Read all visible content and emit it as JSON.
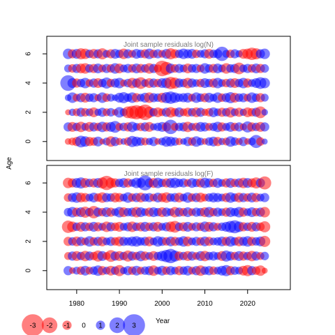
{
  "chart_data": {
    "type": "scatter",
    "xlabel": "Year",
    "ylabel": "Age",
    "years_range": [
      1978,
      2024
    ],
    "xlim": [
      1973,
      2030
    ],
    "ylim": [
      -1.3,
      7.2
    ],
    "x_ticks": [
      1980,
      1990,
      2000,
      2010,
      2020
    ],
    "y_ticks": [
      0,
      2,
      4,
      6
    ],
    "colors": {
      "positive": "#0000ff",
      "negative": "#ff0000"
    },
    "opacity": 0.5,
    "panels": [
      {
        "title": "Joint sample residuals log(N)",
        "ages": [
          0,
          1,
          2,
          3,
          4,
          5,
          6
        ],
        "residuals": [
          [
            -0.6,
            -0.8,
            -1.0,
            1.4,
            1.2,
            -1.0,
            -0.9,
            1.1,
            -0.5,
            0.8,
            -1.2,
            1.0,
            -0.7,
            0.6,
            -0.9,
            1.3,
            1.1,
            0.9,
            -0.8,
            0.7,
            1.0,
            -0.6,
            0.8,
            1.2,
            1.1,
            0.9,
            -0.7,
            0.6,
            1.0,
            -0.9,
            1.2,
            0.8,
            -0.6,
            0.9,
            1.1,
            -1.0,
            0.7,
            -0.8,
            1.2,
            0.9,
            -0.7,
            1.0,
            -0.6,
            0.8,
            1.6,
            -0.9,
            0.5
          ],
          [
            1.0,
            -1.1,
            0.9,
            -1.2,
            0.8,
            -1.1,
            1.0,
            -0.9,
            1.2,
            -1.0,
            1.1,
            1.4,
            -0.8,
            0.9,
            -1.0,
            1.2,
            0.8,
            -0.9,
            1.0,
            -1.1,
            0.7,
            0.9,
            1.1,
            -1.0,
            1.8,
            -0.8,
            0.9,
            1.0,
            -1.2,
            0.8,
            -0.9,
            1.1,
            1.0,
            -0.8,
            0.9,
            1.2,
            -1.0,
            0.8,
            1.1,
            -0.9,
            1.0,
            -0.7,
            1.3,
            -1.0,
            0.9,
            -1.1,
            1.0
          ],
          [
            -0.5,
            0.7,
            -0.8,
            1.0,
            -0.9,
            0.8,
            -1.1,
            0.7,
            1.0,
            -0.8,
            0.9,
            -0.6,
            1.2,
            0.8,
            -1.4,
            -1.6,
            -1.8,
            -1.5,
            -2.0,
            -1.3,
            0.9,
            -1.1,
            -0.8,
            1.0,
            -1.2,
            -0.9,
            1.1,
            -0.8,
            -1.0,
            0.9,
            -1.1,
            1.0,
            -0.7,
            -0.9,
            1.1,
            0.8,
            -1.0,
            0.9,
            -1.2,
            0.8,
            -1.0,
            0.7,
            -1.1,
            -0.9,
            1.0,
            -1.4,
            0.6
          ],
          [
            0.6,
            1.2,
            -0.8,
            1.0,
            -1.1,
            0.9,
            1.0,
            -0.7,
            1.2,
            -0.9,
            0.8,
            0.6,
            1.1,
            1.3,
            0.9,
            1.2,
            -1.0,
            0.8,
            1.1,
            -1.2,
            1.0,
            0.9,
            -1.1,
            1.3,
            1.5,
            1.2,
            0.9,
            1.0,
            1.1,
            -0.8,
            1.2,
            0.9,
            -1.0,
            1.1,
            0.8,
            1.2,
            -0.9,
            1.0,
            1.3,
            -1.1,
            0.9,
            1.0,
            -0.8,
            1.2,
            0.9,
            -1.0,
            0.8
          ],
          [
            2.0,
            1.1,
            -1.0,
            0.9,
            1.2,
            -0.8,
            1.0,
            -1.1,
            0.9,
            1.3,
            -0.9,
            1.0,
            1.2,
            -0.7,
            0.9,
            -1.2,
            1.0,
            -1.4,
            0.8,
            -1.1,
            1.0,
            -0.9,
            1.1,
            1.2,
            -1.5,
            -1.3,
            1.0,
            0.9,
            -1.2,
            1.0,
            0.8,
            -0.9,
            1.1,
            0.9,
            -1.0,
            1.2,
            0.8,
            -0.9,
            1.0,
            -1.1,
            0.9,
            1.2,
            -1.0,
            0.8,
            1.1,
            1.4,
            1.2
          ],
          [
            0.8,
            -0.9,
            1.0,
            -1.1,
            -1.2,
            0.9,
            -1.0,
            1.1,
            -0.8,
            1.0,
            -0.9,
            1.2,
            -1.1,
            0.8,
            1.0,
            -0.9,
            1.1,
            -1.0,
            0.9,
            -1.2,
            1.0,
            -0.8,
            -2.0,
            -1.6,
            1.1,
            -0.9,
            1.0,
            0.8,
            -1.1,
            0.9,
            1.0,
            -0.8,
            1.2,
            0.9,
            -1.0,
            1.1,
            0.8,
            -1.2,
            0.9,
            1.0,
            -1.4,
            0.8,
            1.0,
            -0.9,
            1.1,
            -1.0,
            0.9
          ],
          [
            1.2,
            -1.0,
            1.1,
            -1.3,
            -1.2,
            0.9,
            -1.1,
            1.0,
            -1.3,
            0.8,
            -1.0,
            1.1,
            0.9,
            -1.2,
            1.0,
            -0.8,
            1.1,
            0.9,
            -1.0,
            1.2,
            -0.9,
            1.0,
            -0.8,
            1.1,
            -1.3,
            -1.0,
            0.9,
            1.2,
            1.0,
            1.1,
            -0.9,
            0.8,
            1.0,
            -1.1,
            0.9,
            1.0,
            1.8,
            0.8,
            -0.9,
            1.0,
            0.7,
            -1.1,
            -1.2,
            -1.5,
            -1.3,
            1.0,
            1.2
          ]
        ]
      },
      {
        "title": "Joint sample residuals log(F)",
        "ages": [
          0,
          1,
          2,
          3,
          4,
          5,
          6
        ],
        "residuals": [
          [
            1.0,
            -0.6,
            0.8,
            -0.9,
            1.1,
            -0.8,
            0.9,
            1.2,
            -1.0,
            0.8,
            -1.1,
            0.9,
            -1.3,
            0.7,
            1.0,
            -0.9,
            1.1,
            -0.8,
            0.9,
            1.0,
            -1.2,
            0.8,
            1.1,
            -0.9,
            1.0,
            0.8,
            -1.0,
            0.9,
            1.1,
            -0.8,
            1.0,
            -1.2,
            0.9,
            1.0,
            -0.9,
            0.8,
            1.1,
            1.3,
            -1.0,
            0.9,
            0.8,
            -1.1,
            -1.3,
            1.0,
            -0.9,
            -1.2,
            -0.5
          ],
          [
            -0.8,
            1.0,
            -1.1,
            0.9,
            -1.2,
            1.0,
            -0.9,
            -1.3,
            1.1,
            -0.8,
            -1.4,
            1.0,
            -1.1,
            0.9,
            -1.3,
            1.0,
            -0.9,
            1.2,
            -1.0,
            0.8,
            -1.1,
            0.9,
            1.2,
            1.5,
            1.8,
            1.3,
            -1.0,
            0.9,
            -1.1,
            1.0,
            -0.8,
            1.1,
            -1.2,
            0.9,
            1.0,
            0.8,
            -1.1,
            1.3,
            1.0,
            -0.9,
            1.1,
            -1.0,
            0.9,
            -1.2,
            1.0,
            -0.8,
            0.9
          ],
          [
            -1.0,
            0.9,
            -1.1,
            1.0,
            -0.8,
            1.2,
            -0.9,
            1.0,
            -1.1,
            0.8,
            1.0,
            -0.9,
            -1.1,
            1.0,
            0.9,
            1.1,
            1.2,
            0.9,
            1.0,
            -1.1,
            0.8,
            1.2,
            1.0,
            -0.9,
            1.1,
            -1.0,
            0.9,
            1.2,
            -1.1,
            0.8,
            1.0,
            -0.9,
            1.1,
            -1.0,
            0.8,
            0.9,
            1.1,
            -1.0,
            1.2,
            0.9,
            -1.1,
            1.0,
            1.2,
            -1.0,
            0.9,
            1.1,
            -1.3
          ],
          [
            -1.5,
            -1.2,
            0.9,
            -1.1,
            1.0,
            -0.9,
            1.1,
            -1.0,
            0.8,
            -1.2,
            1.0,
            -0.9,
            -1.1,
            0.8,
            1.0,
            -1.2,
            0.9,
            -1.0,
            1.1,
            -0.9,
            1.0,
            -1.1,
            0.8,
            1.0,
            -1.2,
            -1.4,
            0.9,
            -1.0,
            1.1,
            -0.8,
            1.0,
            -0.9,
            1.2,
            -1.1,
            1.0,
            -0.8,
            0.9,
            1.1,
            1.4,
            1.6,
            1.2,
            -1.0,
            0.9,
            -1.1,
            1.0,
            -0.9,
            -1.3
          ],
          [
            0.9,
            1.2,
            -1.0,
            1.1,
            -1.3,
            0.9,
            -1.5,
            1.0,
            -0.9,
            1.1,
            -1.0,
            0.8,
            1.2,
            -1.1,
            0.9,
            1.0,
            -1.2,
            1.1,
            0.8,
            -1.0,
            1.1,
            0.9,
            -1.1,
            1.0,
            0.8,
            -1.2,
            1.0,
            -0.9,
            1.1,
            -0.8,
            1.0,
            0.9,
            -1.1,
            1.2,
            -0.9,
            1.0,
            0.8,
            -1.0,
            1.1,
            0.9,
            1.2,
            -1.0,
            0.8,
            1.1,
            -0.9,
            1.0,
            -1.2
          ],
          [
            -0.9,
            1.0,
            1.2,
            -1.1,
            -1.0,
            0.8,
            1.1,
            -0.9,
            -1.2,
            1.0,
            0.9,
            -1.1,
            -1.0,
            0.8,
            1.2,
            -0.9,
            1.0,
            -1.1,
            0.9,
            1.0,
            -0.8,
            1.1,
            -1.0,
            -1.2,
            0.9,
            1.0,
            -1.1,
            0.8,
            1.2,
            -0.9,
            1.0,
            -1.1,
            -0.8,
            0.9,
            1.1,
            1.0,
            0.8,
            -1.0,
            1.2,
            0.9,
            -1.1,
            1.0,
            -0.9,
            1.1,
            -1.0,
            0.8,
            1.0
          ],
          [
            -1.2,
            -1.0,
            1.1,
            1.3,
            -1.1,
            0.9,
            -1.0,
            1.1,
            -1.3,
            -1.8,
            -1.2,
            -1.0,
            0.9,
            1.1,
            -1.0,
            0.8,
            1.2,
            1.1,
            1.9,
            1.0,
            -1.1,
            1.2,
            0.9,
            -1.0,
            1.1,
            1.2,
            0.9,
            1.0,
            -0.8,
            1.1,
            0.9,
            -1.0,
            1.2,
            1.0,
            -0.9,
            1.1,
            0.8,
            -1.0,
            1.1,
            -0.9,
            1.0,
            -1.2,
            1.1,
            -1.0,
            -1.3,
            1.0,
            -1.6
          ]
        ]
      }
    ],
    "legend": {
      "values": [
        -3,
        -2,
        -1,
        0,
        1,
        2,
        3
      ],
      "labels": [
        "-3",
        "-2",
        "-1",
        "0",
        "1",
        "2",
        "3"
      ]
    }
  }
}
